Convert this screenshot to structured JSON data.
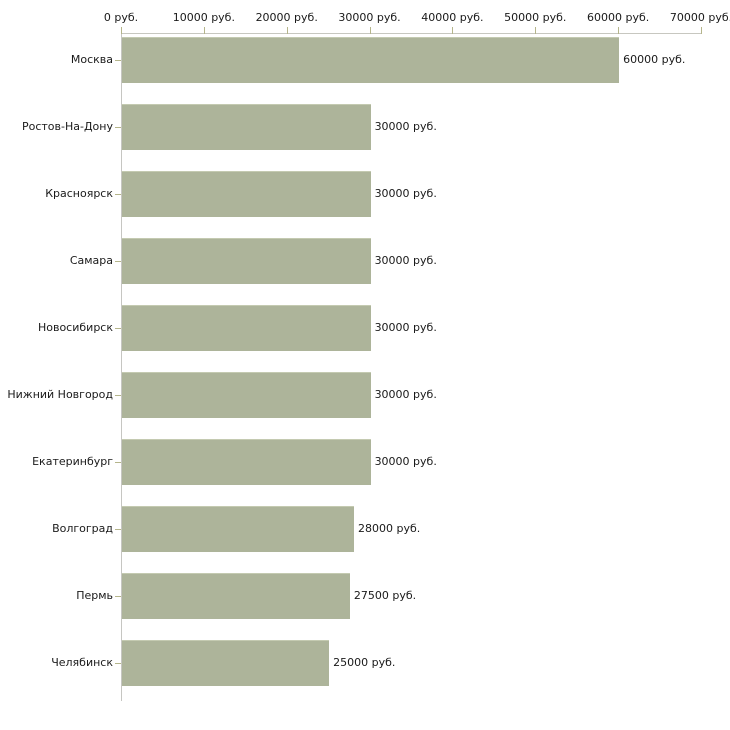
{
  "chart_data": {
    "type": "bar",
    "orientation": "horizontal",
    "title": "",
    "xlabel": "",
    "ylabel": "",
    "unit_suffix": " руб.",
    "categories": [
      "Москва",
      "Ростов-На-Дону",
      "Красноярск",
      "Самара",
      "Новосибирск",
      "Нижний Новгород",
      "Екатеринбург",
      "Волгоград",
      "Пермь",
      "Челябинск"
    ],
    "values": [
      60000,
      30000,
      30000,
      30000,
      30000,
      30000,
      30000,
      28000,
      27500,
      25000
    ],
    "value_labels": [
      "60000 руб.",
      "30000 руб.",
      "30000 руб.",
      "30000 руб.",
      "30000 руб.",
      "30000 руб.",
      "30000 руб.",
      "28000 руб.",
      "27500 руб.",
      "25000 руб."
    ],
    "x_axis": {
      "position": "top",
      "min": 0,
      "max": 70000,
      "ticks": [
        0,
        10000,
        20000,
        30000,
        40000,
        50000,
        60000,
        70000
      ],
      "tick_labels": [
        "0 руб.",
        "10000 руб.",
        "20000 руб.",
        "30000 руб.",
        "40000 руб.",
        "50000 руб.",
        "60000 руб.",
        "70000 руб."
      ]
    },
    "legend": null,
    "grid": false,
    "colors": {
      "bar": "#adb49a",
      "bar_top_edge": "#c4cab1",
      "axis_line": "#c7c7c0",
      "tick": "#b5b58b",
      "text": "#1a1a1a",
      "background": "#ffffff"
    }
  }
}
